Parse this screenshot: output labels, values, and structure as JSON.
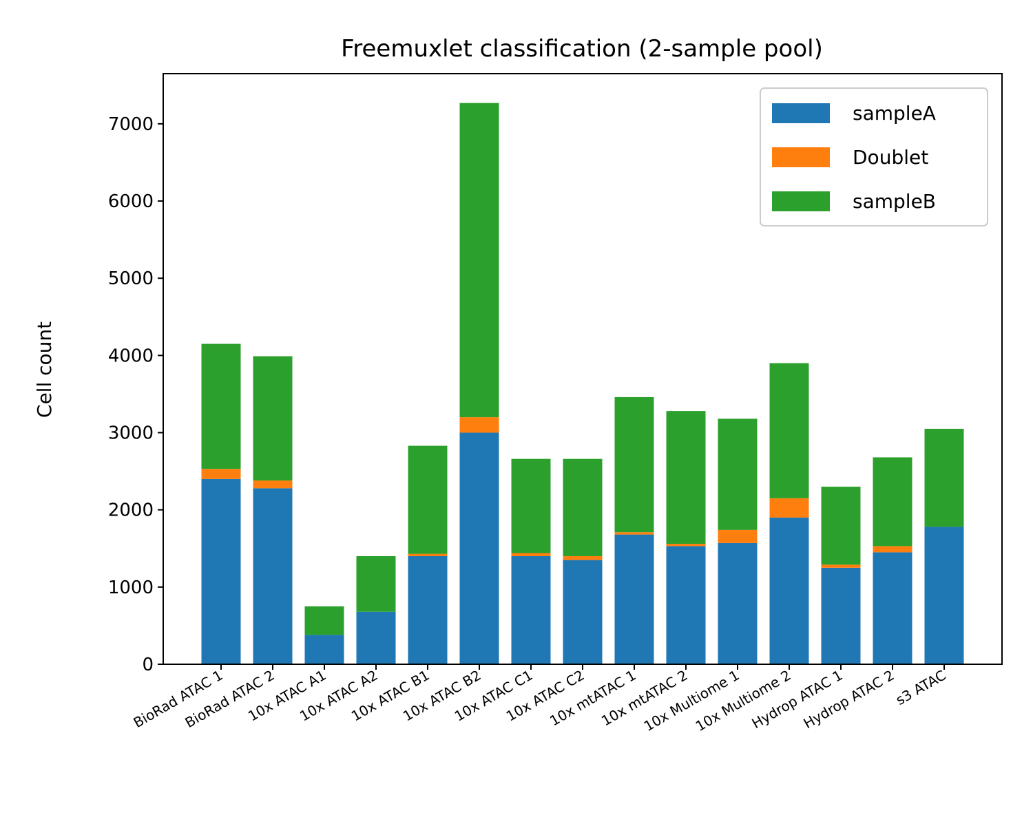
{
  "chart_data": {
    "type": "bar",
    "stacked": true,
    "title": "Freemuxlet classification (2-sample pool)",
    "xlabel": "",
    "ylabel": "Cell count",
    "ylim": [
      0,
      7650
    ],
    "yticks": [
      0,
      1000,
      2000,
      3000,
      4000,
      5000,
      6000,
      7000
    ],
    "grid": false,
    "legend_position": "top-right",
    "categories": [
      "BioRad ATAC 1",
      "BioRad ATAC 2",
      "10x ATAC A1",
      "10x ATAC A2",
      "10x ATAC B1",
      "10x ATAC B2",
      "10x ATAC C1",
      "10x ATAC C2",
      "10x mtATAC 1",
      "10x mtATAC 2",
      "10x Multiome 1",
      "10x Multiome 2",
      "Hydrop ATAC 1",
      "Hydrop ATAC 2",
      "s3 ATAC"
    ],
    "series": [
      {
        "name": "sampleA",
        "color": "#1f77b4",
        "values": [
          2400,
          2280,
          380,
          680,
          1400,
          3000,
          1400,
          1350,
          1680,
          1530,
          1570,
          1900,
          1250,
          1450,
          1780
        ]
      },
      {
        "name": "Doublet",
        "color": "#ff7f0e",
        "values": [
          130,
          100,
          0,
          0,
          30,
          200,
          40,
          50,
          30,
          30,
          170,
          250,
          40,
          80,
          0
        ]
      },
      {
        "name": "sampleB",
        "color": "#2ca02c",
        "values": [
          1620,
          1610,
          370,
          720,
          1400,
          4070,
          1220,
          1260,
          1750,
          1720,
          1440,
          1750,
          1010,
          1150,
          1270
        ]
      }
    ]
  }
}
